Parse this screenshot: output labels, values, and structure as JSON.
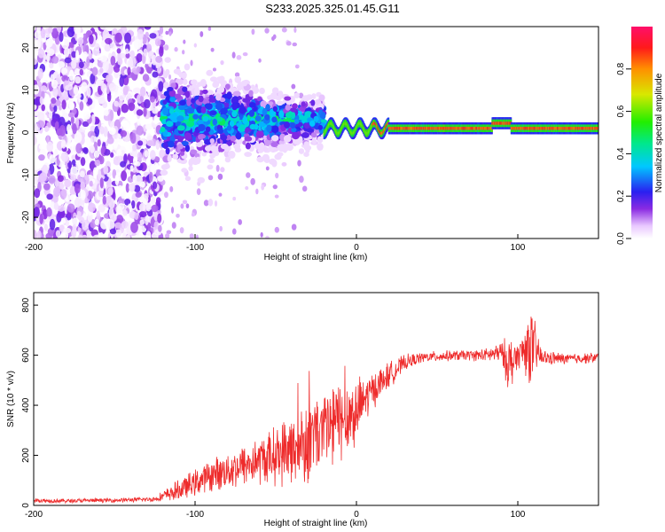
{
  "title": "S233.2025.325.01.45.G11",
  "colors": {
    "snr_line": "#ee2b2b",
    "axis": "#000000"
  },
  "chart_data": [
    {
      "type": "heatmap",
      "panel": "top",
      "xlabel": "Height of straight line (km)",
      "ylabel": "Frequency (Hz)",
      "xlim": [
        -200,
        150
      ],
      "ylim": [
        -25,
        25
      ],
      "xticks": [
        -200,
        -100,
        0,
        100
      ],
      "xtick_labels": [
        "-200",
        "-100",
        "0",
        "100"
      ],
      "yticks": [
        -20,
        -10,
        0,
        10,
        20
      ],
      "ytick_labels": [
        "-20",
        "-10",
        "0",
        "10",
        "20"
      ],
      "colorbar": {
        "label": "Normalized spectral amplitude",
        "range": [
          0,
          1
        ],
        "ticks": [
          0.0,
          0.2,
          0.4,
          0.6,
          0.8
        ],
        "tick_labels": [
          "0.0",
          "0.2",
          "0.4",
          "0.6",
          "0.8"
        ]
      },
      "regions": [
        {
          "x": [
            -200,
            -120
          ],
          "description_level": "noise",
          "amplitude": 0.15
        },
        {
          "x": [
            -120,
            -20
          ],
          "center_hz": 3,
          "width_hz": 8,
          "amplitude": 0.35
        },
        {
          "x": [
            -20,
            150
          ],
          "center_hz": 1,
          "width_hz": 2,
          "amplitude": 0.9
        }
      ]
    },
    {
      "type": "line",
      "panel": "bottom",
      "xlabel": "Height of straight line (km)",
      "ylabel": "SNR (10 * v/v)",
      "xlim": [
        -200,
        150
      ],
      "ylim": [
        0,
        850
      ],
      "xticks": [
        -200,
        -100,
        0,
        100
      ],
      "xtick_labels": [
        "-200",
        "-100",
        "0",
        "100"
      ],
      "yticks": [
        0,
        200,
        400,
        600,
        800
      ],
      "ytick_labels": [
        "0",
        "200",
        "400",
        "600",
        "800"
      ],
      "series": [
        {
          "name": "SNR",
          "x": [
            -200,
            -180,
            -160,
            -140,
            -125,
            -110,
            -100,
            -90,
            -80,
            -70,
            -60,
            -50,
            -40,
            -30,
            -20,
            -10,
            0,
            10,
            20,
            30,
            40,
            50,
            60,
            70,
            80,
            90,
            95,
            100,
            108,
            115,
            130,
            150
          ],
          "y": [
            20,
            18,
            20,
            22,
            25,
            60,
            90,
            120,
            140,
            160,
            180,
            200,
            230,
            260,
            300,
            340,
            380,
            460,
            520,
            570,
            590,
            595,
            598,
            600,
            600,
            610,
            560,
            600,
            640,
            590,
            585,
            590
          ],
          "jitter": [
            8,
            8,
            8,
            8,
            10,
            40,
            50,
            60,
            70,
            80,
            90,
            110,
            140,
            160,
            180,
            160,
            120,
            70,
            50,
            30,
            20,
            20,
            20,
            20,
            25,
            40,
            120,
            40,
            150,
            30,
            20,
            20
          ]
        }
      ]
    }
  ]
}
